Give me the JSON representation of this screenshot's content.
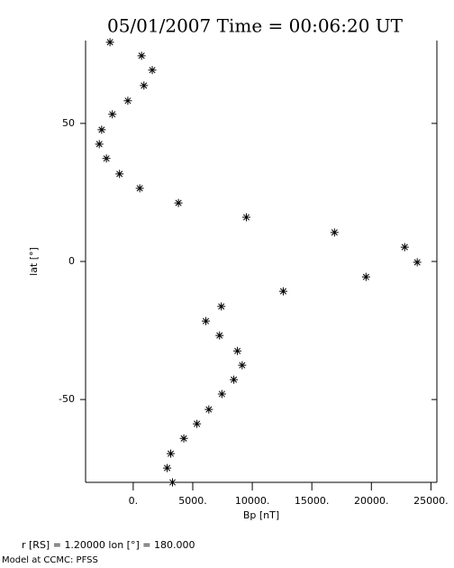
{
  "chart_data": {
    "type": "scatter",
    "title": "05/01/2007 Time = 00:06:20 UT",
    "x_label": "Bp [nT]",
    "y_label": "lat  [°]",
    "annotations": [
      "r [RS] = 1.20000    lon [°] = 180.000",
      "Model at CCMC: PFSS"
    ],
    "xlim": [
      -4000,
      25500
    ],
    "ylim": [
      -80,
      80
    ],
    "xticks": [
      {
        "value": 0,
        "label": "0."
      },
      {
        "value": 5000,
        "label": "5000."
      },
      {
        "value": 10000,
        "label": "10000."
      },
      {
        "value": 15000,
        "label": "15000."
      },
      {
        "value": 20000,
        "label": "20000."
      },
      {
        "value": 25000,
        "label": "25000."
      }
    ],
    "yticks": [
      -50,
      0,
      50
    ],
    "marker": "asterisk",
    "color": "#000000",
    "series": [
      {
        "name": "Bp",
        "x": [
          -1950,
          700,
          1600,
          900,
          -450,
          -1750,
          -2650,
          -2850,
          -2250,
          -1150,
          550,
          3800,
          9500,
          16900,
          22800,
          23850,
          19550,
          12600,
          7400,
          6100,
          7250,
          8750,
          9150,
          8450,
          7450,
          6350,
          5350,
          4250,
          3150,
          2850,
          3300
        ],
        "values": [
          79.4,
          74.5,
          69.3,
          63.7,
          58.2,
          53.3,
          47.7,
          42.5,
          37.3,
          31.7,
          26.5,
          21.2,
          16.0,
          10.5,
          5.2,
          -0.3,
          -5.6,
          -10.8,
          -16.3,
          -21.6,
          -26.8,
          -32.4,
          -37.6,
          -42.8,
          -48.0,
          -53.6,
          -58.8,
          -64.1,
          -69.6,
          -74.8,
          -80.0
        ]
      }
    ]
  }
}
